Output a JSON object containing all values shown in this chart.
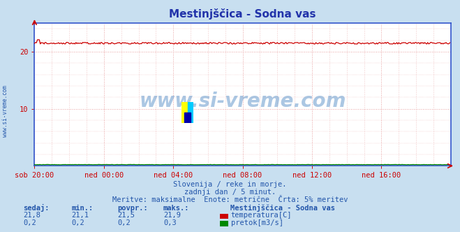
{
  "title_text": "Mestinjščica - Sodna vas",
  "outer_bg_color": "#c8dff0",
  "plot_bg_color": "#ffffff",
  "grid_color": "#e8a0a0",
  "xticklabels": [
    "sob 20:00",
    "ned 00:00",
    "ned 04:00",
    "ned 08:00",
    "ned 12:00",
    "ned 16:00"
  ],
  "xtick_positions": [
    0,
    72,
    144,
    216,
    288,
    360
  ],
  "yticks": [
    10,
    20
  ],
  "ylim": [
    0,
    25
  ],
  "xlim": [
    0,
    432
  ],
  "temp_color": "#cc0000",
  "flow_color": "#008800",
  "temp_min": 21.1,
  "temp_max": 21.9,
  "temp_avg": 21.5,
  "temp_now": 21.8,
  "flow_min": 0.2,
  "flow_max": 0.3,
  "flow_avg": 0.2,
  "flow_now": 0.2,
  "bottom_text1": "Slovenija / reke in morje.",
  "bottom_text2": "zadnji dan / 5 minut.",
  "bottom_text3": "Meritve: maksimalne  Enote: metrične  Črta: 5% meritev",
  "legend_title": "Mestinjščica - Sodna vas",
  "label_temp": "temperatura[C]",
  "label_flow": "pretok[m3/s]",
  "watermark": "www.si-vreme.com",
  "axis_color": "#3355cc",
  "text_color": "#2255aa",
  "tick_color": "#cc0000",
  "n_points": 432,
  "ylabel_left": "www.si-vreme.com",
  "title_color": "#2233aa"
}
